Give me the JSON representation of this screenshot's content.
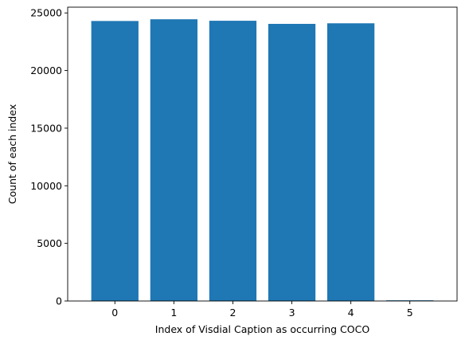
{
  "chart_data": {
    "type": "bar",
    "categories": [
      "0",
      "1",
      "2",
      "3",
      "4",
      "5"
    ],
    "values": [
      24300,
      24450,
      24320,
      24050,
      24100,
      60
    ],
    "title": "",
    "xlabel": "Index of Visdial Caption as occurring COCO",
    "ylabel": "Count of each index",
    "ylim": [
      0,
      25500
    ],
    "xlim": [
      -0.8,
      5.8
    ],
    "yticks": [
      0,
      5000,
      10000,
      15000,
      20000,
      25000
    ],
    "ytick_labels": [
      "0",
      "5000",
      "10000",
      "15000",
      "20000",
      "25000"
    ],
    "bar_width": 0.8,
    "bar_color": "#1f77b4",
    "grid": false,
    "legend": "none"
  }
}
